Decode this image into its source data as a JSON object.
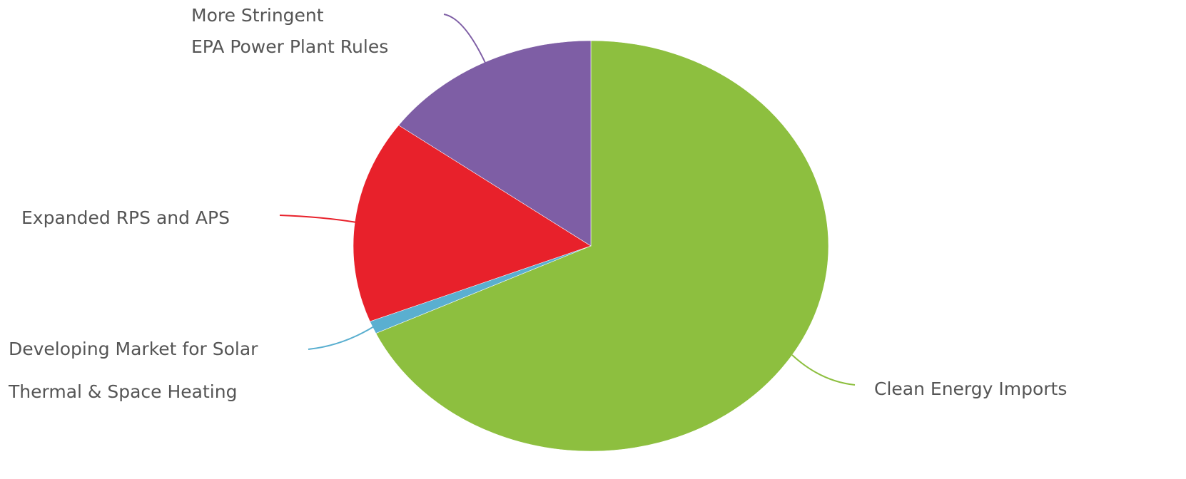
{
  "chart_data": {
    "type": "pie",
    "categories": [
      "Clean Energy Imports",
      "Developing Market for Solar\nThermal & Space Heating",
      "Expanded RPS and APS",
      "More Stringent\nEPA Power Plant Rules"
    ],
    "values": [
      68,
      1,
      16,
      15
    ],
    "colors": [
      "#8dbf3f",
      "#5aafd0",
      "#e8212b",
      "#7e5ea5"
    ]
  }
}
